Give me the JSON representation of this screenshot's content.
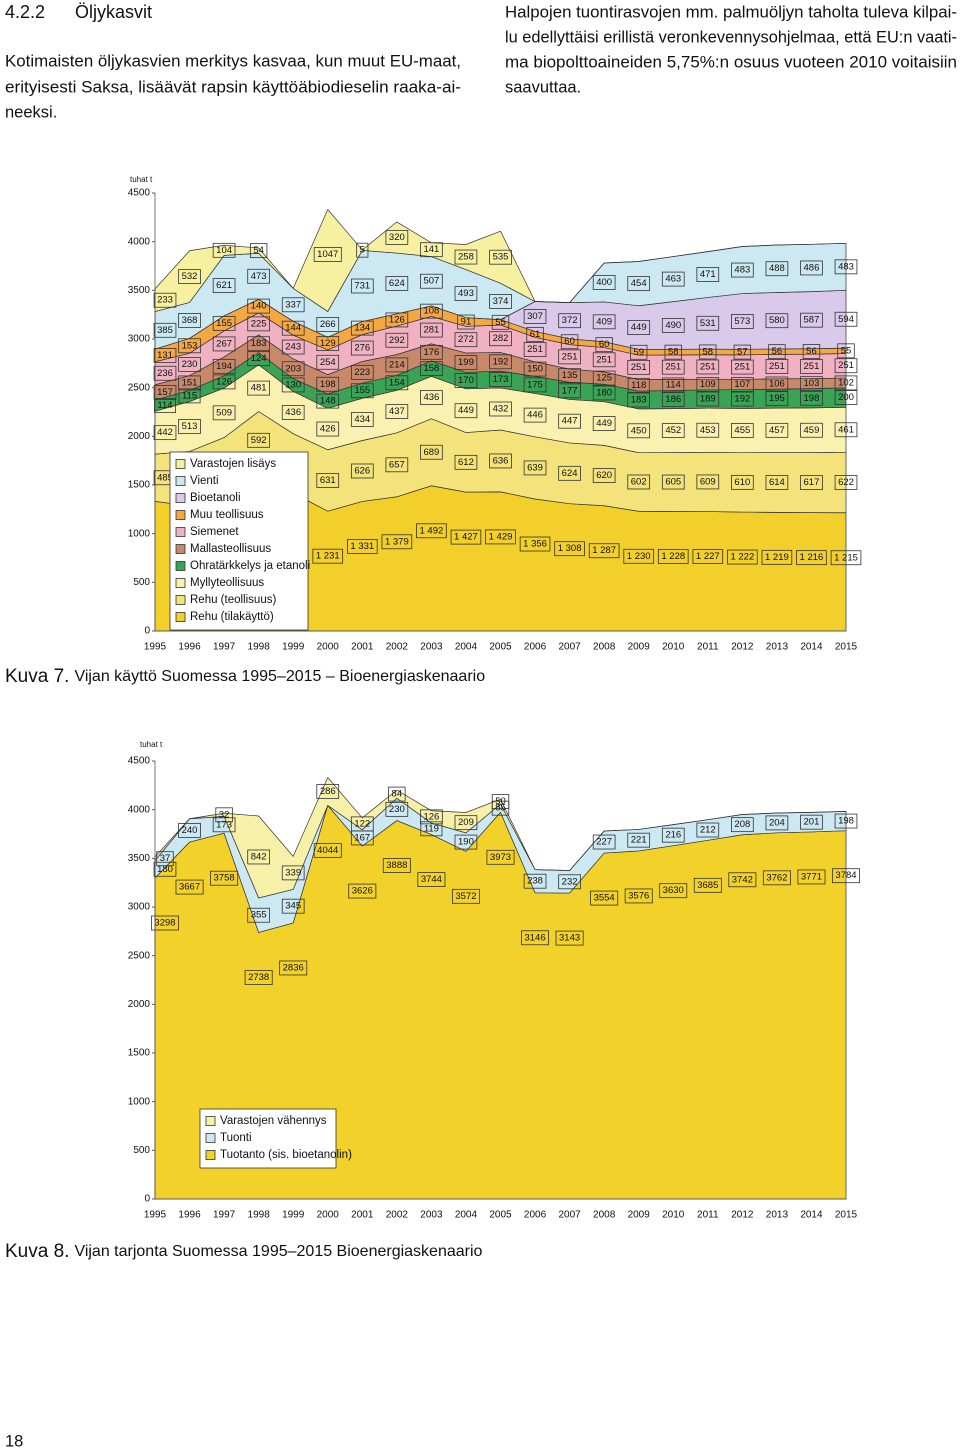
{
  "header": {
    "number": "4.2.2",
    "title": "Öljykasvit"
  },
  "left_column": [
    "Kotimaisten öljykasvien merkitys kasvaa, kun muut EU-maat,",
    "erityisesti Saksa, lisäävät rapsin käyttöäbiodieselin raaka-ai-",
    "neeksi."
  ],
  "right_column": [
    "Halpojen tuontirasvojen mm. palmuöljyn taholta tuleva kilpai-",
    "lu edellyttäisi erillistä veronkevennysohjelmaa, että EU:n vaati-",
    "ma biopolttoaineiden 5,75%:n osuus vuoteen 2010 voitaisiin",
    "saavuttaa."
  ],
  "page_number": "18",
  "chart_data": [
    {
      "type": "area",
      "stacked": true,
      "y_label": "tuhat t",
      "caption": {
        "label": "Kuva 7.",
        "text": "Vijan käyttö Suomessa 1995–2015 – Bioenergiaskenaario"
      },
      "categories": [
        "1995",
        "1996",
        "1997",
        "1998",
        "1999",
        "2000",
        "2001",
        "2002",
        "2003",
        "2004",
        "2005",
        "2006",
        "2007",
        "2008",
        "2009",
        "2010",
        "2011",
        "2012",
        "2013",
        "2014",
        "2015"
      ],
      "ylim": [
        0,
        4500
      ],
      "yticks": [
        0,
        500,
        1000,
        1500,
        2000,
        2500,
        3000,
        3500,
        4000,
        4500
      ],
      "legend": "lower left",
      "series": [
        {
          "name": "Rehu (tilakäyttö)",
          "color": "#f2cf2a",
          "values": [
            1332,
            1285,
            1487,
            1663,
            1417,
            1231,
            1331,
            1379,
            1492,
            1427,
            1429,
            1356,
            1308,
            1287,
            1230,
            1228,
            1227,
            1222,
            1219,
            1216,
            1215
          ],
          "value_labels": [
            null,
            null,
            null,
            null,
            null,
            "1 231",
            "1 331",
            "1 379",
            "1 492",
            "1 427",
            "1 429",
            "1 356",
            "1 308",
            "1 287",
            "1 230",
            "1 228",
            "1 227",
            "1 222",
            "1 219",
            "1 216",
            "1 215"
          ]
        },
        {
          "name": "Rehu (teollisuus)",
          "color": "#f4e27a",
          "values": [
            485,
            560,
            500,
            592,
            610,
            631,
            626,
            657,
            689,
            612,
            636,
            639,
            624,
            620,
            602,
            605,
            609,
            610,
            614,
            617,
            622
          ]
        },
        {
          "name": "Myllyteollisuus",
          "color": "#faf1b0",
          "values": [
            442,
            513,
            509,
            481,
            436,
            426,
            434,
            437,
            436,
            449,
            432,
            446,
            447,
            449,
            450,
            452,
            453,
            455,
            457,
            459,
            461
          ]
        },
        {
          "name": "Ohratärkkelys ja etanoli",
          "color": "#3aa356",
          "values": [
            114,
            115,
            126,
            124,
            130,
            148,
            155,
            154,
            158,
            170,
            173,
            175,
            177,
            180,
            183,
            186,
            189,
            192,
            195,
            198,
            200
          ]
        },
        {
          "name": "Mallasteollisuus",
          "color": "#c8896a",
          "values": [
            157,
            151,
            194,
            183,
            203,
            198,
            223,
            214,
            176,
            199,
            192,
            150,
            135,
            125,
            118,
            114,
            109,
            107,
            106,
            103,
            102
          ]
        },
        {
          "name": "Siemenet",
          "color": "#f0b2c2",
          "values": [
            236,
            230,
            267,
            225,
            243,
            254,
            276,
            292,
            281,
            272,
            282,
            251,
            251,
            251,
            251,
            251,
            251,
            251,
            251,
            251,
            251
          ]
        },
        {
          "name": "Muu teollisuus",
          "color": "#f5a742",
          "values": [
            131,
            153,
            155,
            140,
            144,
            129,
            134,
            126,
            108,
            91,
            55,
            61,
            60,
            60,
            59,
            58,
            58,
            57,
            56,
            56,
            55
          ]
        },
        {
          "name": "Bioetanoli",
          "color": "#d9c9ea",
          "values": [
            0,
            0,
            0,
            0,
            0,
            0,
            0,
            0,
            0,
            0,
            0,
            307,
            372,
            409,
            449,
            490,
            531,
            573,
            580,
            587,
            594
          ]
        },
        {
          "name": "Vienti",
          "color": "#cce8f2",
          "values": [
            385,
            368,
            621,
            473,
            337,
            266,
            731,
            624,
            507,
            493,
            374,
            0,
            0,
            400,
            454,
            463,
            471,
            483,
            488,
            486,
            483
          ]
        },
        {
          "name": "Varastojen lisäys",
          "color": "#f7f0a0",
          "values": [
            233,
            532,
            104,
            54,
            0,
            1047,
            5,
            320,
            141,
            258,
            535,
            0,
            0,
            0,
            0,
            0,
            0,
            0,
            0,
            0,
            0
          ]
        }
      ]
    },
    {
      "type": "area",
      "stacked": true,
      "y_label": "tuhat t",
      "caption": {
        "label": "Kuva 8.",
        "text": "Vijan tarjonta Suomessa 1995–2015 Bioenergiaskenaario"
      },
      "categories": [
        "1995",
        "1996",
        "1997",
        "1998",
        "1999",
        "2000",
        "2001",
        "2002",
        "2003",
        "2004",
        "2005",
        "2006",
        "2007",
        "2008",
        "2009",
        "2010",
        "2011",
        "2012",
        "2013",
        "2014",
        "2015"
      ],
      "ylim": [
        0,
        4500
      ],
      "yticks": [
        0,
        500,
        1000,
        1500,
        2000,
        2500,
        3000,
        3500,
        4000,
        4500
      ],
      "legend": "lower left",
      "series": [
        {
          "name": "Tuotanto (sis. bioetanolin)",
          "color": "#f2d22a",
          "values": [
            3298,
            3667,
            3758,
            2738,
            2836,
            4044,
            3626,
            3888,
            3744,
            3572,
            3973,
            3146,
            3143,
            3554,
            3576,
            3630,
            3685,
            3742,
            3762,
            3771,
            3784
          ]
        },
        {
          "name": "Tuonti",
          "color": "#cce8f2",
          "values": [
            180,
            240,
            173,
            355,
            345,
            0,
            167,
            230,
            119,
            190,
            85,
            238,
            232,
            227,
            221,
            216,
            212,
            208,
            204,
            201,
            198
          ]
        },
        {
          "name": "Varastojen vähennys",
          "color": "#f7f0a8",
          "values": [
            37,
            0,
            32,
            842,
            339,
            286,
            122,
            84,
            126,
            209,
            50,
            0,
            0,
            0,
            0,
            0,
            0,
            0,
            0,
            0,
            0
          ]
        }
      ]
    }
  ]
}
